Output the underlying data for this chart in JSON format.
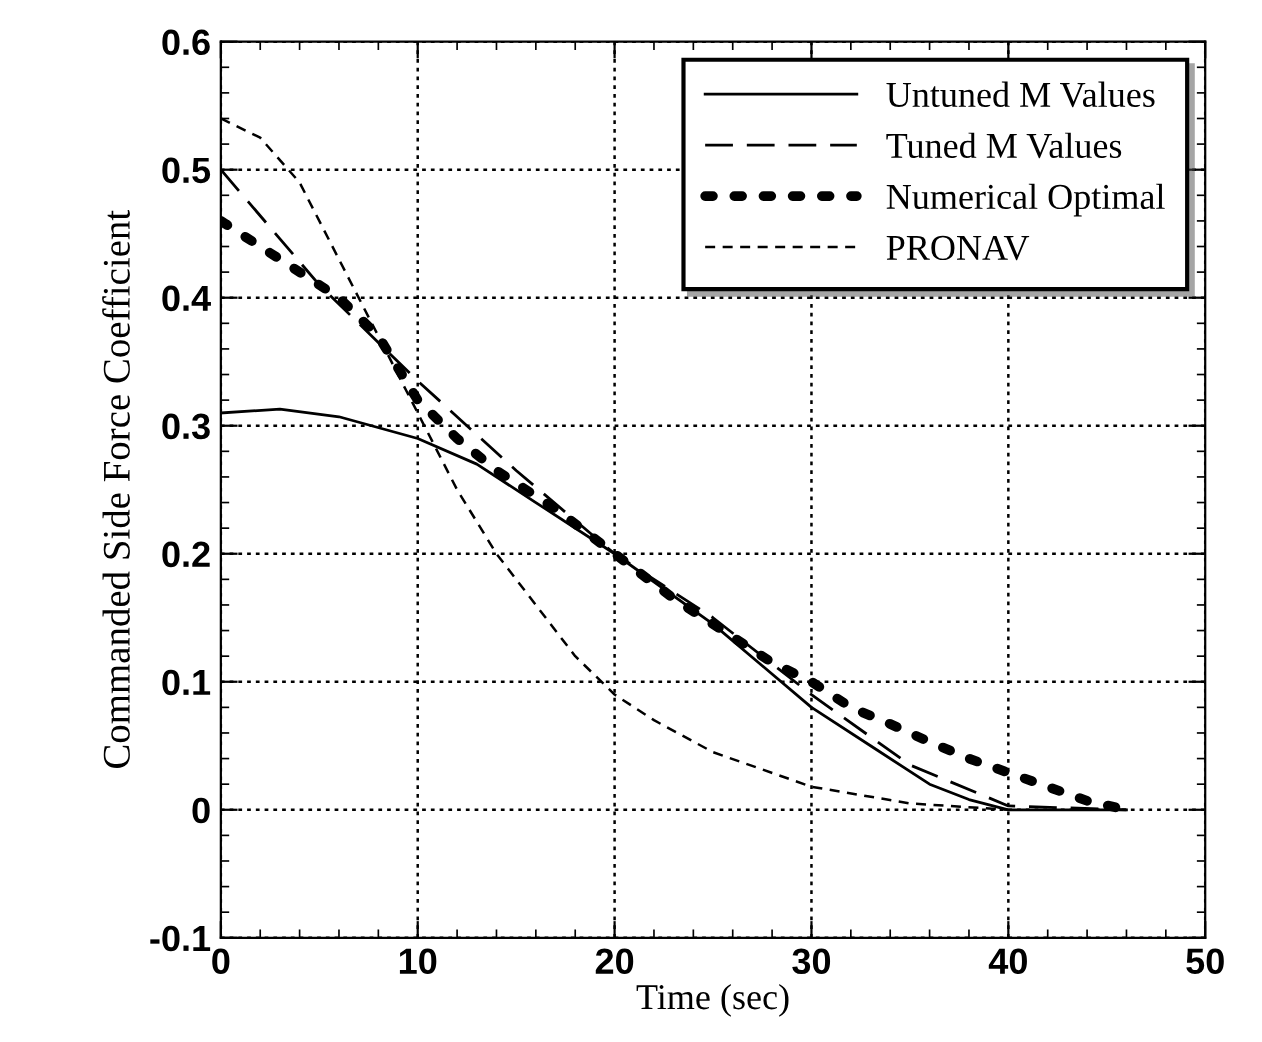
{
  "chart_data": {
    "type": "line",
    "xlabel": "Time (sec)",
    "ylabel": "Commanded Side Force Coefficient",
    "xlim": [
      0,
      50
    ],
    "ylim": [
      -0.1,
      0.6
    ],
    "xticks": [
      0,
      10,
      20,
      30,
      40,
      50
    ],
    "yticks": [
      {
        "value": -0.1,
        "label": "-0.1"
      },
      0,
      0.1,
      0.2,
      0.3,
      0.4,
      0.5,
      0.6
    ],
    "grid": true,
    "legend": "top right",
    "marker": "none",
    "series": [
      {
        "name": "Untuned M Values",
        "color": "#000000",
        "line_style": "solid",
        "x": [
          0,
          3,
          6,
          10,
          13,
          16,
          20,
          25,
          30,
          33,
          36,
          38,
          40,
          43,
          46
        ],
        "values": [
          0.31,
          0.313,
          0.307,
          0.29,
          0.27,
          0.24,
          0.2,
          0.145,
          0.08,
          0.05,
          0.02,
          0.008,
          0,
          0,
          0
        ]
      },
      {
        "name": "Tuned M Values",
        "color": "#000000",
        "line_style": "dashed",
        "x": [
          0,
          5,
          10,
          15,
          20,
          25,
          30,
          35,
          40,
          46
        ],
        "values": [
          0.5,
          0.41,
          0.335,
          0.265,
          0.2,
          0.15,
          0.09,
          0.035,
          0.003,
          0
        ]
      },
      {
        "name": "Numerical Optimal",
        "color": "#000000",
        "line_style": "dotted",
        "x": [
          0,
          2,
          4,
          6,
          8,
          10,
          12,
          14,
          17,
          20,
          23,
          26,
          28,
          30,
          32,
          34,
          36,
          38,
          40,
          42,
          44,
          46
        ],
        "values": [
          0.46,
          0.44,
          0.42,
          0.4,
          0.37,
          0.32,
          0.29,
          0.265,
          0.235,
          0.2,
          0.165,
          0.135,
          0.115,
          0.1,
          0.08,
          0.067,
          0.053,
          0.04,
          0.029,
          0.018,
          0.007,
          0
        ]
      },
      {
        "name": "PRONAV",
        "color": "#000000",
        "line_style": "short dashed",
        "x": [
          0,
          2,
          4,
          6,
          8,
          10,
          12,
          14,
          16,
          18,
          20,
          22,
          25,
          30,
          35,
          40
        ],
        "values": [
          0.54,
          0.525,
          0.49,
          0.43,
          0.37,
          0.31,
          0.25,
          0.2,
          0.16,
          0.12,
          0.09,
          0.07,
          0.045,
          0.018,
          0.005,
          0
        ]
      }
    ]
  }
}
